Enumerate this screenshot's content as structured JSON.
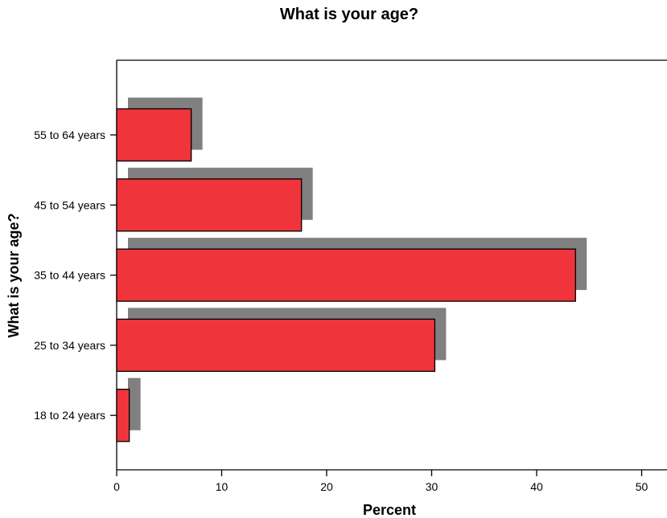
{
  "chart_data": {
    "type": "bar",
    "orientation": "horizontal",
    "title": "What is your age?",
    "xlabel": "Percent",
    "ylabel": "What is your age?",
    "xlim": [
      0,
      52
    ],
    "xticks": [
      0,
      10,
      20,
      30,
      40,
      50
    ],
    "categories": [
      "18 to 24 years",
      "25 to 34 years",
      "35 to 44 years",
      "45 to 54 years",
      "55 to 64 years"
    ],
    "values": [
      1.2,
      30.3,
      43.7,
      17.6,
      7.1
    ],
    "shadow": true,
    "colors": {
      "bar": "#ef343b",
      "shadow": "#808080",
      "edge": "#000000"
    }
  }
}
